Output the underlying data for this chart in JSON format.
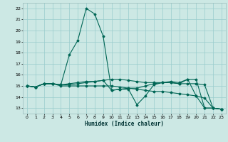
{
  "xlabel": "Humidex (Indice chaleur)",
  "background_color": "#cce8e4",
  "grid_color": "#99cccc",
  "line_color": "#006655",
  "x_ticks": [
    0,
    1,
    2,
    3,
    4,
    5,
    6,
    7,
    8,
    9,
    10,
    11,
    12,
    13,
    14,
    15,
    16,
    17,
    18,
    19,
    20,
    21,
    22,
    23
  ],
  "ylim": [
    12.5,
    22.5
  ],
  "xlim": [
    -0.5,
    23.5
  ],
  "yticks": [
    13,
    14,
    15,
    16,
    17,
    18,
    19,
    20,
    21,
    22
  ],
  "series": [
    [
      15.0,
      14.9,
      15.2,
      15.2,
      15.1,
      17.8,
      19.1,
      22.0,
      21.5,
      19.5,
      14.6,
      14.7,
      14.7,
      13.3,
      14.1,
      15.1,
      15.3,
      15.3,
      15.2,
      15.6,
      14.1,
      13.0,
      13.0,
      12.9
    ],
    [
      15.0,
      14.9,
      15.2,
      15.2,
      15.1,
      15.1,
      15.2,
      15.3,
      15.4,
      15.5,
      14.6,
      14.7,
      14.8,
      14.8,
      15.0,
      15.2,
      15.3,
      15.4,
      15.3,
      15.6,
      15.6,
      13.0,
      13.0,
      12.9
    ],
    [
      15.0,
      14.9,
      15.2,
      15.2,
      15.1,
      15.2,
      15.3,
      15.4,
      15.4,
      15.5,
      15.6,
      15.6,
      15.5,
      15.4,
      15.3,
      15.3,
      15.3,
      15.3,
      15.2,
      15.2,
      15.2,
      15.1,
      13.0,
      12.9
    ],
    [
      15.0,
      14.9,
      15.2,
      15.2,
      15.0,
      15.0,
      15.0,
      15.0,
      15.0,
      15.0,
      15.0,
      14.9,
      14.8,
      14.7,
      14.6,
      14.5,
      14.5,
      14.4,
      14.3,
      14.2,
      14.1,
      13.9,
      13.0,
      12.9
    ]
  ],
  "figsize": [
    3.2,
    2.0
  ],
  "dpi": 100
}
